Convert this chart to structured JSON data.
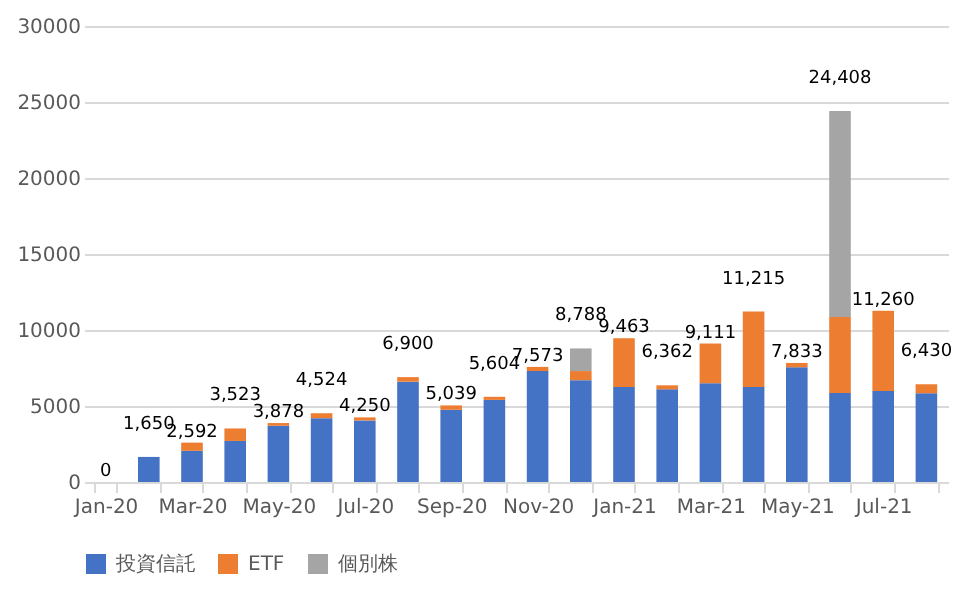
{
  "chart_data": {
    "type": "bar",
    "stacked": true,
    "categories": [
      "Jan-20",
      null,
      "Mar-20",
      null,
      "May-20",
      null,
      "Jul-20",
      null,
      "Sep-20",
      null,
      "Nov-20",
      null,
      "Jan-21",
      null,
      "Mar-21",
      null,
      "May-21",
      null,
      "Jul-21",
      null
    ],
    "series": [
      {
        "name": "投資信託",
        "color": "#4472c4",
        "values": [
          0,
          1650,
          2050,
          2700,
          3700,
          4200,
          4050,
          6600,
          4750,
          5400,
          7300,
          6700,
          6250,
          6100,
          6500,
          6250,
          7550,
          5850,
          5980,
          5840
        ]
      },
      {
        "name": "ETF",
        "color": "#ed7d31",
        "values": [
          0,
          0,
          542,
          823,
          178,
          324,
          200,
          300,
          289,
          204,
          273,
          600,
          3213,
          262,
          2611,
          4965,
          283,
          5000,
          5280,
          590
        ]
      },
      {
        "name": "個別株",
        "color": "#a5a5a5",
        "values": [
          0,
          0,
          0,
          0,
          0,
          0,
          0,
          0,
          0,
          0,
          0,
          1488,
          0,
          0,
          0,
          0,
          0,
          13558,
          0,
          0
        ]
      }
    ],
    "totals": [
      "0",
      "1,650",
      "2,592",
      "3,523",
      "3,878",
      "4,524",
      "4,250",
      "6,900",
      "5,039",
      "5,604",
      "7,573",
      "8,788",
      "9,463",
      "6,362",
      "9,111",
      "11,215",
      "7,833",
      "24,408",
      "11,260",
      "6,430"
    ],
    "ylim": [
      0,
      30000
    ],
    "yticks": [
      0,
      5000,
      10000,
      15000,
      20000,
      25000,
      30000
    ],
    "grid": "y",
    "legend": "bottom"
  }
}
